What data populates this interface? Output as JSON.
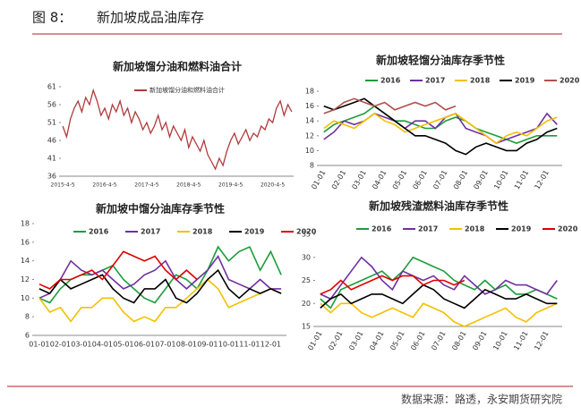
{
  "header": {
    "figure": "图 8：",
    "title": "新加坡成品油库存"
  },
  "footer": {
    "source": "数据来源：路透，永安期货研究院"
  },
  "chart_data": [
    {
      "type": "line",
      "title": "新加坡馏分油和燃料油合计",
      "categories": [
        "2015-4-5",
        null,
        null,
        null,
        null,
        null,
        null,
        null,
        null,
        null,
        null,
        "2016-4-5",
        null,
        null,
        null,
        null,
        null,
        null,
        null,
        null,
        null,
        null,
        "2017-4-5",
        null,
        null,
        null,
        null,
        null,
        null,
        null,
        null,
        null,
        null,
        "2018-4-5",
        null,
        null,
        null,
        null,
        null,
        null,
        null,
        null,
        null,
        null,
        "2019-4-5",
        null,
        null,
        null,
        null,
        null,
        null,
        null,
        null,
        null,
        null,
        "2020-4-5",
        null,
        null,
        null,
        null,
        null
      ],
      "series": [
        {
          "name": "新加坡馏分油和燃料油合计",
          "color": "#b03a3a",
          "values": [
            50,
            47,
            52,
            55,
            57,
            54,
            58,
            56,
            60,
            57,
            53,
            55,
            52,
            56,
            54,
            57,
            53,
            55,
            51,
            54,
            52,
            49,
            51,
            48,
            50,
            53,
            49,
            51,
            47,
            50,
            48,
            46,
            49,
            44,
            47,
            45,
            43,
            46,
            42,
            40,
            38,
            41,
            39,
            43,
            46,
            48,
            45,
            47,
            49,
            46,
            48,
            47,
            50,
            49,
            52,
            51,
            55,
            57,
            53,
            56,
            54
          ]
        }
      ],
      "ylim": [
        36,
        61
      ],
      "yticks": [
        36,
        41,
        46,
        51,
        56,
        61
      ]
    },
    {
      "type": "line",
      "title": "新加坡轻馏分油库存季节性",
      "categories": [
        "01-01",
        null,
        "02-01",
        null,
        "03-01",
        null,
        "04-01",
        null,
        "05-01",
        null,
        "06-01",
        null,
        "07-01",
        null,
        "08-01",
        null,
        "09-01",
        null,
        "10-01",
        null,
        "11-01",
        null,
        "12-01",
        null
      ],
      "series": [
        {
          "name": "2016",
          "color": "#1a9e3a",
          "values": [
            12.5,
            13.5,
            14,
            14.5,
            15,
            16,
            15,
            14,
            14,
            13.5,
            13,
            13,
            14,
            14.5,
            14,
            13,
            12.5,
            12,
            11.5,
            11,
            11.5,
            12,
            12,
            12
          ]
        },
        {
          "name": "2017",
          "color": "#7030a0",
          "values": [
            11.5,
            12.5,
            14,
            13.5,
            14,
            15,
            14.5,
            14,
            13,
            14,
            14,
            13,
            14.5,
            15,
            13,
            12.5,
            12,
            11,
            11.5,
            12,
            12.5,
            13,
            15,
            13.5
          ]
        },
        {
          "name": "2018",
          "color": "#f5c000",
          "values": [
            13,
            14,
            13.5,
            13,
            14,
            15,
            14,
            13.5,
            12.5,
            13,
            13.5,
            14,
            14.5,
            15,
            14,
            13,
            12,
            11,
            12,
            12.5,
            12,
            13,
            14,
            14.5
          ]
        },
        {
          "name": "2019",
          "color": "#000000",
          "values": [
            16,
            15.5,
            16,
            16.5,
            17,
            16,
            15,
            14,
            13,
            12,
            12,
            11.5,
            11,
            10,
            9.5,
            10.5,
            11,
            10.5,
            10,
            10,
            11,
            11.5,
            12.5,
            13
          ]
        },
        {
          "name": "2020",
          "color": "#b0504c",
          "values": [
            15,
            15.5,
            16.5,
            17,
            16.5,
            16,
            16.5,
            15.5,
            16,
            16.5,
            16,
            16.5,
            15.5,
            16,
            null,
            null,
            null,
            null,
            null,
            null,
            null,
            null,
            null,
            null
          ]
        }
      ],
      "ylim": [
        8,
        18
      ],
      "yticks": [
        8,
        10,
        12,
        14,
        16,
        18
      ]
    },
    {
      "type": "line",
      "title": "新加坡中馏分油库存季节性",
      "categories": [
        "01-01",
        null,
        "02-01",
        null,
        "03-01",
        null,
        "04-01",
        null,
        "05-01",
        null,
        "06-01",
        null,
        "07-01",
        null,
        "08-01",
        null,
        "09-01",
        null,
        "10-01",
        null,
        "11-01",
        null,
        "12-01",
        null
      ],
      "series": [
        {
          "name": "2016",
          "color": "#1a9e3a",
          "values": [
            10,
            9.5,
            11,
            12,
            12.5,
            12.5,
            13,
            13.5,
            12,
            11,
            10,
            9.5,
            11,
            12.5,
            12,
            11,
            13,
            15.5,
            14,
            15,
            15.5,
            13,
            15,
            12.5
          ]
        },
        {
          "name": "2017",
          "color": "#7030a0",
          "values": [
            10,
            10.5,
            12,
            14,
            13,
            12.5,
            13,
            12,
            11,
            11.5,
            12.5,
            13,
            14,
            12,
            11,
            12,
            13,
            14.5,
            12,
            11.5,
            11,
            12,
            11,
            11
          ]
        },
        {
          "name": "2018",
          "color": "#f5c000",
          "values": [
            10,
            8.5,
            9,
            7.5,
            9,
            9,
            10,
            10,
            8.5,
            7.5,
            8,
            7.5,
            9,
            9,
            10,
            11,
            12,
            11,
            9,
            9.5,
            10,
            10.5,
            11,
            10.5
          ]
        },
        {
          "name": "2019",
          "color": "#000000",
          "values": [
            11,
            10.5,
            12,
            11,
            11.5,
            12,
            12.5,
            11,
            10,
            9.5,
            11,
            11,
            12,
            10,
            9.5,
            10.5,
            12,
            13,
            11,
            10,
            11,
            10.5,
            11,
            10.5
          ]
        },
        {
          "name": "2020",
          "color": "#e00000",
          "values": [
            11.5,
            11,
            12,
            12,
            12.5,
            13,
            12,
            13.5,
            15,
            14.5,
            14,
            14.5,
            13,
            12,
            13,
            12,
            null,
            null,
            null,
            null,
            null,
            null,
            null,
            null
          ]
        }
      ],
      "ylim": [
        6,
        18
      ],
      "yticks": [
        6,
        8,
        10,
        12,
        14,
        16,
        18
      ]
    },
    {
      "type": "line",
      "title": "新加坡残渣燃料油库存季节性",
      "categories": [
        "01-01",
        null,
        "02-01",
        null,
        "03-01",
        null,
        "04-01",
        null,
        "05-01",
        null,
        "06-01",
        null,
        "07-01",
        null,
        "08-01",
        null,
        "09-01",
        null,
        "10-01",
        null,
        "11-01",
        null,
        "12-01",
        null
      ],
      "series": [
        {
          "name": "2016",
          "color": "#1a9e3a",
          "values": [
            21,
            19,
            23,
            24,
            25,
            26,
            27,
            25,
            27,
            30,
            29,
            28,
            27,
            25,
            24,
            23,
            25,
            23,
            24,
            22,
            22,
            23,
            22,
            21
          ]
        },
        {
          "name": "2017",
          "color": "#7030a0",
          "values": [
            22,
            21,
            24,
            27,
            30,
            28,
            25,
            23,
            27,
            26,
            25,
            26,
            24,
            23,
            26,
            24,
            22,
            23,
            25,
            24,
            24,
            23,
            22,
            25
          ]
        },
        {
          "name": "2018",
          "color": "#f5c000",
          "values": [
            20,
            18,
            20,
            20,
            18,
            17,
            18,
            19,
            18,
            17,
            20,
            19,
            18,
            16,
            15,
            16,
            17,
            18,
            19,
            17,
            16,
            18,
            19,
            20
          ]
        },
        {
          "name": "2019",
          "color": "#000000",
          "values": [
            19,
            21,
            22,
            20,
            21,
            22,
            22,
            21,
            20,
            22,
            24,
            23,
            21,
            20,
            19,
            21,
            23,
            22,
            21,
            21,
            22,
            21,
            20,
            20
          ]
        },
        {
          "name": "2020",
          "color": "#e00000",
          "values": [
            22,
            23,
            25,
            23,
            24,
            25,
            26,
            25,
            26,
            26,
            24,
            25,
            25,
            24,
            25,
            null,
            null,
            null,
            null,
            null,
            null,
            null,
            null,
            null
          ]
        }
      ],
      "ylim": [
        15,
        35
      ],
      "yticks": [
        15,
        20,
        25,
        30,
        35
      ]
    }
  ]
}
